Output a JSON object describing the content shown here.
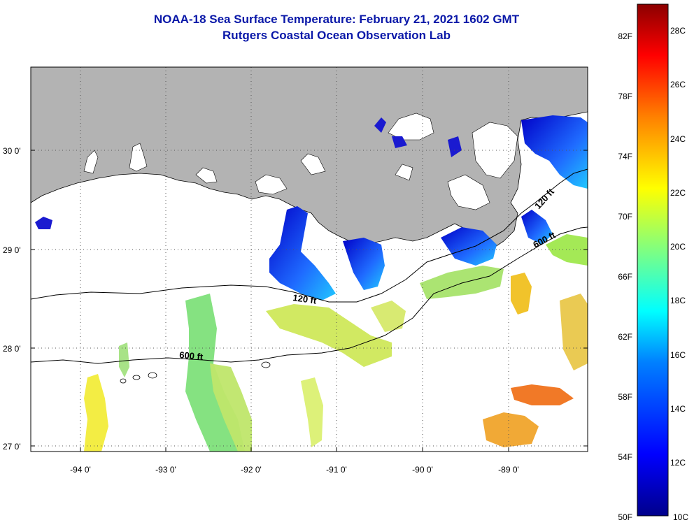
{
  "title": {
    "line1": "NOAA-18 Sea Surface Temperature:  February 21, 2021 1602 GMT",
    "line2": "Rutgers Coastal Ocean Observation Lab"
  },
  "map": {
    "lat_labels": [
      "30 0'",
      "29 0'",
      "28 0'",
      "27 0'"
    ],
    "lon_labels": [
      "-94 0'",
      "-93 0'",
      "-92 0'",
      "-91 0'",
      "-90 0'",
      "-89 0'"
    ],
    "contours": [
      {
        "label": "120 ft"
      },
      {
        "label": "600 ft"
      },
      {
        "label": "120 ft"
      },
      {
        "label": "600 ft"
      }
    ],
    "colors": {
      "land": "#b3b3b3",
      "water": "#ffffff",
      "grid": "#555555"
    }
  },
  "colorbar": {
    "fahrenheit_labels": [
      "82F",
      "78F",
      "74F",
      "70F",
      "66F",
      "62F",
      "58F",
      "54F",
      "50F"
    ],
    "celsius_labels": [
      "28C",
      "26C",
      "24C",
      "22C",
      "20C",
      "18C",
      "16C",
      "14C",
      "12C",
      "10C"
    ],
    "stops": [
      "#00008b",
      "#0000ff",
      "#0080ff",
      "#00ffff",
      "#80ff80",
      "#ffff00",
      "#ff8000",
      "#ff0000",
      "#8b0000"
    ]
  }
}
